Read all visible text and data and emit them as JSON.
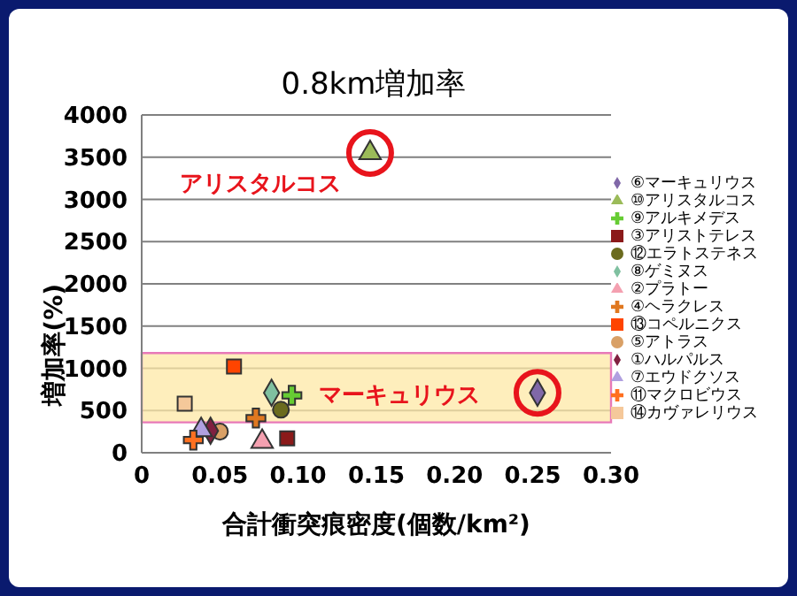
{
  "chart_data": {
    "type": "scatter",
    "title": "0.8km増加率",
    "xlabel": "合計衝突痕密度(個数/km²)",
    "ylabel": "増加率(%)",
    "xlim": [
      0,
      0.3
    ],
    "xticks": [
      0,
      0.05,
      {
        "value": 0.1,
        "label": "0.10"
      },
      0.15,
      {
        "value": 0.2,
        "label": "0.20"
      },
      0.25,
      {
        "value": 0.3,
        "label": "0.30"
      }
    ],
    "ylim": [
      0,
      4000
    ],
    "yticks": [
      0,
      500,
      1000,
      1500,
      2000,
      2500,
      3000,
      3500,
      4000
    ],
    "grid": "y",
    "legend": "right",
    "bands": [
      {
        "axis": "y",
        "from": 360,
        "to": 1180,
        "color": "#fde8a6"
      }
    ],
    "annotations": [
      {
        "text": "アリスタルコス",
        "x": 0.146,
        "y": 3550
      },
      {
        "text": "マーキュリウス",
        "x": 0.253,
        "y": 710
      }
    ],
    "series": [
      {
        "name": "⑥マーキュリウス",
        "color": "#8068a8",
        "marker": "diamond",
        "x": [
          0.253
        ],
        "values": [
          710
        ]
      },
      {
        "name": "⑩アリスタルコス",
        "color": "#9bbb59",
        "marker": "triangle",
        "x": [
          0.146
        ],
        "values": [
          3550
        ]
      },
      {
        "name": "⑨アルキメデス",
        "color": "#66cc33",
        "marker": "cross",
        "x": [
          0.096
        ],
        "values": [
          680
        ]
      },
      {
        "name": "③アリストテレス",
        "color": "#8b1a1a",
        "marker": "square",
        "x": [
          0.093
        ],
        "values": [
          170
        ]
      },
      {
        "name": "⑫エラトステネス",
        "color": "#6b6b1e",
        "marker": "circle",
        "x": [
          0.089
        ],
        "values": [
          510
        ]
      },
      {
        "name": "⑧ゲミヌス",
        "color": "#7fc0a0",
        "marker": "diamond",
        "x": [
          0.083
        ],
        "values": [
          710
        ]
      },
      {
        "name": "②プラトー",
        "color": "#f4a0b0",
        "marker": "triangle",
        "x": [
          0.077
        ],
        "values": [
          130
        ]
      },
      {
        "name": "④ヘラクレス",
        "color": "#e07820",
        "marker": "cross",
        "x": [
          0.073
        ],
        "values": [
          410
        ]
      },
      {
        "name": "⑬コペルニクス",
        "color": "#ff4400",
        "marker": "square",
        "x": [
          0.059
        ],
        "values": [
          1020
        ]
      },
      {
        "name": "⑤アトラス",
        "color": "#d9a066",
        "marker": "circle",
        "x": [
          0.05
        ],
        "values": [
          250
        ]
      },
      {
        "name": "①ハルパルス",
        "color": "#802040",
        "marker": "diamond",
        "x": [
          0.044
        ],
        "values": [
          260
        ]
      },
      {
        "name": "⑦エウドクソス",
        "color": "#b0a0e0",
        "marker": "triangle",
        "x": [
          0.038
        ],
        "values": [
          270
        ]
      },
      {
        "name": "⑪マクロビウス",
        "color": "#ff7020",
        "marker": "cross",
        "x": [
          0.033
        ],
        "values": [
          150
        ]
      },
      {
        "name": "⑭カヴァレリウス",
        "color": "#f5c89a",
        "marker": "square",
        "x": [
          0.0275
        ],
        "values": [
          580
        ]
      }
    ]
  }
}
